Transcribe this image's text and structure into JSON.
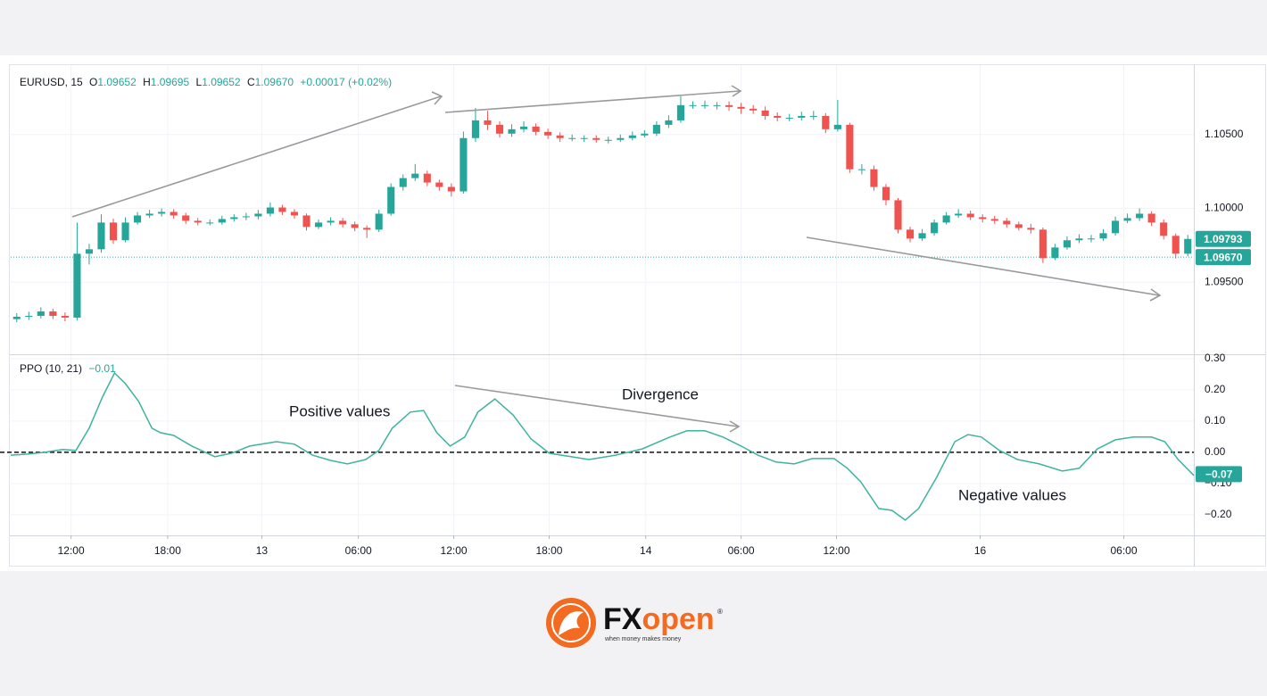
{
  "chart_data": [
    {
      "type": "candlestick",
      "header": {
        "symbol": "EURUSD, 15",
        "open_label": "O",
        "open": "1.09652",
        "high_label": "H",
        "high": "1.09695",
        "low_label": "L",
        "low": "1.09652",
        "close_label": "C",
        "close": "1.09670",
        "change": "+0.00017 (+0.02%)"
      },
      "up_color": "#26a69a",
      "down_color": "#ef5350",
      "open": [
        1.0925,
        1.09266,
        1.09272,
        1.09302,
        1.09272,
        1.0926,
        1.09693,
        1.09723,
        1.09904,
        1.09784,
        1.09904,
        1.09952,
        1.09964,
        1.09976,
        1.09952,
        1.09916,
        1.09904,
        1.09904,
        1.09928,
        1.0994,
        1.09946,
        1.09964,
        1.10006,
        1.09976,
        1.09952,
        1.09874,
        1.09904,
        1.09916,
        1.09892,
        1.09868,
        1.09856,
        1.09964,
        1.10145,
        1.10205,
        1.10235,
        1.10175,
        1.10145,
        1.10115,
        1.10476,
        1.10596,
        1.10566,
        1.10506,
        1.10536,
        1.10554,
        1.10518,
        1.10494,
        1.10476,
        1.10476,
        1.10476,
        1.10464,
        1.10464,
        1.10476,
        1.10494,
        1.10506,
        1.10566,
        1.10596,
        1.10699,
        1.10699,
        1.10699,
        1.10699,
        1.10687,
        1.10675,
        1.10663,
        1.10626,
        1.10614,
        1.10614,
        1.10626,
        1.10626,
        1.10536,
        1.10566,
        1.10265,
        1.10265,
        1.10145,
        1.10055,
        1.09856,
        1.09796,
        1.09832,
        1.09904,
        1.09952,
        1.09964,
        1.0994,
        1.09928,
        1.09916,
        1.09892,
        1.09868,
        1.09856,
        1.09663,
        1.09735,
        1.09784,
        1.09796,
        1.09796,
        1.09832,
        1.09916,
        1.09934,
        1.09964,
        1.09904,
        1.09814,
        1.09693
      ],
      "high": [
        1.0929,
        1.093,
        1.0933,
        1.0932,
        1.09295,
        1.09904,
        1.0976,
        1.0996,
        1.0993,
        1.0994,
        1.09975,
        1.0999,
        1.1,
        1.09995,
        1.0997,
        1.09935,
        1.09925,
        1.0995,
        1.0996,
        1.0997,
        1.0999,
        1.1004,
        1.10025,
        1.09995,
        1.09965,
        1.09925,
        1.0994,
        1.09935,
        1.0991,
        1.09885,
        1.0999,
        1.1017,
        1.1023,
        1.103,
        1.10255,
        1.10195,
        1.1017,
        1.1052,
        1.1068,
        1.1066,
        1.1059,
        1.1057,
        1.1059,
        1.10575,
        1.1054,
        1.10515,
        1.105,
        1.10495,
        1.10495,
        1.10485,
        1.105,
        1.1052,
        1.1053,
        1.1059,
        1.1063,
        1.1076,
        1.10725,
        1.1073,
        1.1072,
        1.10725,
        1.10715,
        1.107,
        1.1069,
        1.1065,
        1.1064,
        1.10655,
        1.1066,
        1.10645,
        1.10735,
        1.1058,
        1.103,
        1.1029,
        1.10165,
        1.1007,
        1.09875,
        1.0986,
        1.09925,
        1.09975,
        1.09995,
        1.09985,
        1.0996,
        1.0995,
        1.09935,
        1.0991,
        1.09895,
        1.0987,
        1.0976,
        1.0981,
        1.09825,
        1.0982,
        1.0986,
        1.09945,
        1.09965,
        1.1,
        1.0998,
        1.09925,
        1.0983,
        1.0982
      ],
      "low": [
        1.0923,
        1.09245,
        1.09255,
        1.0925,
        1.09235,
        1.0924,
        1.0962,
        1.097,
        1.0976,
        1.0977,
        1.0989,
        1.09935,
        1.09945,
        1.0993,
        1.09895,
        1.09885,
        1.09885,
        1.0989,
        1.0991,
        1.0992,
        1.09925,
        1.09945,
        1.09955,
        1.0993,
        1.0985,
        1.0986,
        1.09885,
        1.0987,
        1.09845,
        1.098,
        1.0984,
        1.0995,
        1.1012,
        1.10185,
        1.1015,
        1.1012,
        1.1008,
        1.101,
        1.1045,
        1.1053,
        1.1048,
        1.10485,
        1.10515,
        1.10495,
        1.1047,
        1.1045,
        1.10455,
        1.1045,
        1.10445,
        1.1044,
        1.1045,
        1.1046,
        1.1048,
        1.1049,
        1.10545,
        1.1058,
        1.10675,
        1.10675,
        1.1067,
        1.1066,
        1.1064,
        1.1064,
        1.106,
        1.1059,
        1.1059,
        1.10595,
        1.106,
        1.1051,
        1.1052,
        1.1024,
        1.1023,
        1.1012,
        1.1002,
        1.0983,
        1.0977,
        1.0978,
        1.09815,
        1.0989,
        1.09935,
        1.0992,
        1.09905,
        1.09895,
        1.0987,
        1.0985,
        1.0983,
        1.0963,
        1.0965,
        1.0972,
        1.09765,
        1.0977,
        1.0978,
        1.09815,
        1.099,
        1.09915,
        1.0988,
        1.0979,
        1.0966,
        1.09675
      ],
      "close": [
        1.09266,
        1.09272,
        1.09302,
        1.09272,
        1.0926,
        1.09693,
        1.09723,
        1.09904,
        1.09784,
        1.09904,
        1.09952,
        1.09964,
        1.09976,
        1.09952,
        1.09916,
        1.09904,
        1.09904,
        1.09928,
        1.0994,
        1.09946,
        1.09964,
        1.10006,
        1.09976,
        1.09952,
        1.09874,
        1.09904,
        1.09916,
        1.09892,
        1.09868,
        1.09856,
        1.09964,
        1.10145,
        1.10205,
        1.10235,
        1.10175,
        1.10145,
        1.10115,
        1.10476,
        1.10596,
        1.10566,
        1.10506,
        1.10536,
        1.10554,
        1.10518,
        1.10494,
        1.10476,
        1.10476,
        1.10476,
        1.10464,
        1.10464,
        1.10476,
        1.10494,
        1.10506,
        1.10566,
        1.10596,
        1.10699,
        1.10699,
        1.10699,
        1.10699,
        1.10687,
        1.10675,
        1.10663,
        1.10626,
        1.10614,
        1.10614,
        1.10626,
        1.10626,
        1.10536,
        1.10566,
        1.10265,
        1.10265,
        1.10145,
        1.10055,
        1.09856,
        1.09796,
        1.09832,
        1.09904,
        1.09952,
        1.09964,
        1.0994,
        1.09928,
        1.09916,
        1.09892,
        1.09868,
        1.09856,
        1.09663,
        1.09735,
        1.09784,
        1.09796,
        1.09796,
        1.09832,
        1.09916,
        1.09934,
        1.09964,
        1.09904,
        1.09814,
        1.09693,
        1.09793
      ],
      "price_lines": [
        {
          "value": 1.09793,
          "label": "1.09793"
        },
        {
          "value": 1.0967,
          "label": "1.09670"
        }
      ],
      "xlim": [
        0,
        98
      ],
      "xticks": [
        {
          "value": 5.0,
          "label": "12:00"
        },
        {
          "value": 13.0,
          "label": "18:00"
        },
        {
          "value": 20.8,
          "label": "13"
        },
        {
          "value": 28.8,
          "label": "06:00"
        },
        {
          "value": 36.7,
          "label": "12:00"
        },
        {
          "value": 44.6,
          "label": "18:00"
        },
        {
          "value": 52.6,
          "label": "14"
        },
        {
          "value": 60.5,
          "label": "06:00"
        },
        {
          "value": 68.4,
          "label": "12:00"
        },
        {
          "value": 80.3,
          "label": "16"
        },
        {
          "value": 92.2,
          "label": "06:00"
        }
      ],
      "ylim": [
        1.09012,
        1.10958
      ],
      "yticks": [
        {
          "value": 1.105,
          "label": "1.10500"
        },
        {
          "value": 1.1,
          "label": "1.10000"
        },
        {
          "value": 1.095,
          "label": "1.09500"
        }
      ],
      "grid": true
    },
    {
      "type": "line",
      "title": "PPO (10, 21)",
      "current_label": "−0.01",
      "color": "#3fb39e",
      "annotations": [
        "Positive values",
        "Divergence",
        "Negative values"
      ],
      "xlim": [
        0,
        98
      ],
      "x": [
        0,
        1.3,
        2.8,
        4.3,
        5.4,
        6.5,
        7.6,
        8.6,
        9.5,
        10.6,
        11.7,
        12.4,
        13.5,
        15.0,
        16.9,
        18.3,
        19.8,
        22.0,
        23.5,
        25.0,
        26.5,
        27.9,
        29.4,
        30.5,
        31.6,
        33.1,
        34.2,
        35.3,
        36.4,
        37.6,
        38.7,
        40.1,
        41.6,
        43.1,
        44.6,
        46.4,
        47.9,
        50.1,
        52.3,
        54.6,
        56.0,
        57.5,
        59.0,
        60.5,
        61.9,
        63.4,
        64.9,
        66.4,
        68.2,
        69.3,
        70.4,
        71.9,
        73.0,
        74.1,
        75.2,
        76.7,
        78.2,
        79.3,
        80.4,
        81.9,
        83.4,
        85.2,
        87.1,
        88.5,
        90.0,
        91.5,
        93.0,
        94.5,
        95.6,
        96.7,
        98
      ],
      "values": [
        -0.009,
        -0.006,
        0,
        0.009,
        0.006,
        0.077,
        0.177,
        0.254,
        0.22,
        0.163,
        0.077,
        0.063,
        0.054,
        0.02,
        -0.014,
        -0.003,
        0.02,
        0.034,
        0.026,
        -0.009,
        -0.026,
        -0.037,
        -0.023,
        0.006,
        0.077,
        0.129,
        0.134,
        0.063,
        0.02,
        0.049,
        0.129,
        0.171,
        0.12,
        0.043,
        -0.003,
        -0.014,
        -0.023,
        -0.009,
        0.011,
        0.049,
        0.069,
        0.069,
        0.049,
        0.02,
        -0.009,
        -0.031,
        -0.037,
        -0.02,
        -0.02,
        -0.051,
        -0.094,
        -0.18,
        -0.186,
        -0.217,
        -0.18,
        -0.08,
        0.034,
        0.057,
        0.049,
        0.006,
        -0.023,
        -0.037,
        -0.06,
        -0.051,
        0.011,
        0.04,
        0.049,
        0.049,
        0.034,
        -0.023,
        -0.074
      ],
      "last_value": {
        "value": -0.07,
        "label": "−0.07"
      },
      "ylim": [
        -0.266,
        0.314
      ],
      "yticks": [
        {
          "value": 0.3,
          "label": "0.30"
        },
        {
          "value": 0.2,
          "label": "0.20"
        },
        {
          "value": 0.1,
          "label": "0.10"
        },
        {
          "value": 0,
          "label": "0.00"
        },
        {
          "value": -0.1,
          "label": "−0.10"
        },
        {
          "value": -0.2,
          "label": "−0.20"
        }
      ],
      "grid": true
    }
  ],
  "logo": {
    "brand_fx": "FX",
    "brand_open": "open",
    "registered": "®",
    "tagline": "when money makes money"
  }
}
